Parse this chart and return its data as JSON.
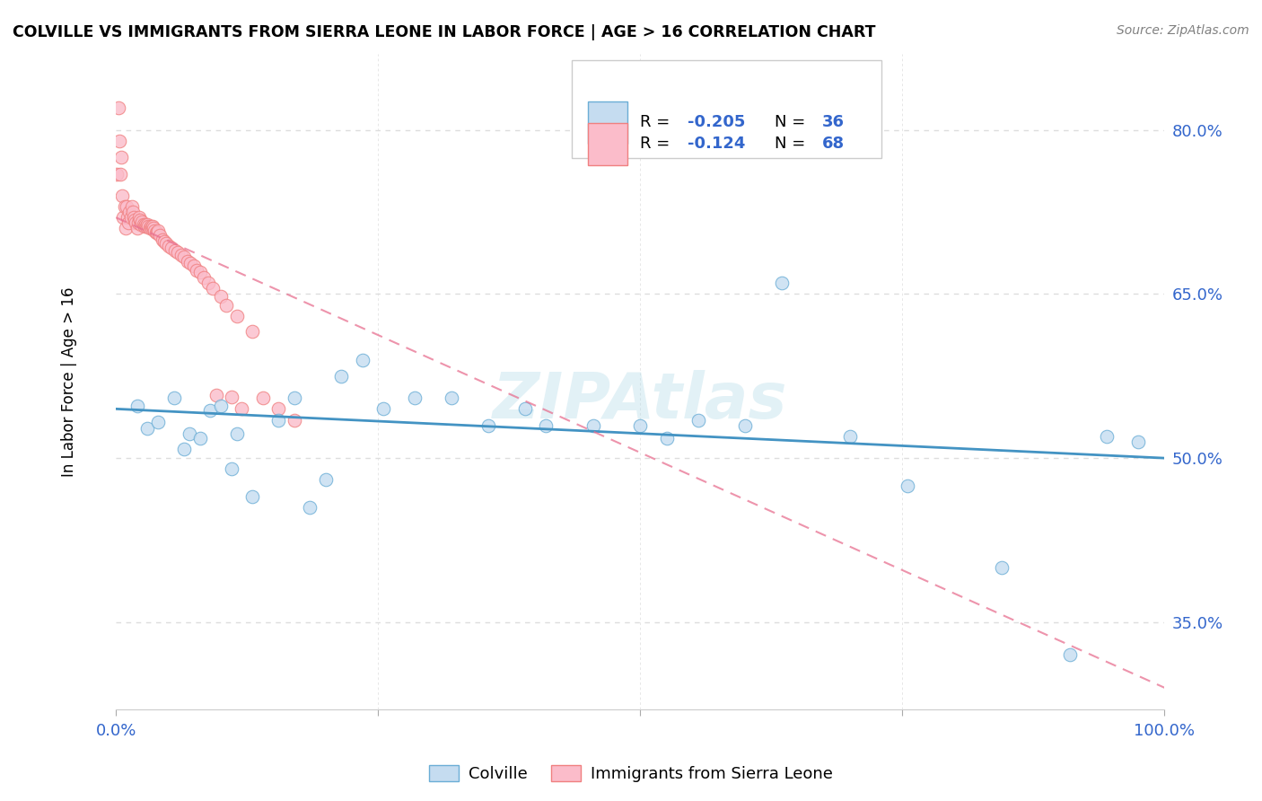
{
  "title": "COLVILLE VS IMMIGRANTS FROM SIERRA LEONE IN LABOR FORCE | AGE > 16 CORRELATION CHART",
  "source": "Source: ZipAtlas.com",
  "ylabel": "In Labor Force | Age > 16",
  "xlim": [
    0.0,
    1.0
  ],
  "ylim": [
    0.27,
    0.87
  ],
  "ytick_values": [
    0.35,
    0.5,
    0.65,
    0.8
  ],
  "ytick_labels": [
    "35.0%",
    "50.0%",
    "65.0%",
    "80.0%"
  ],
  "xtick_values": [
    0.0,
    0.25,
    0.5,
    0.75,
    1.0
  ],
  "xtick_labels": [
    "0.0%",
    "",
    "",
    "",
    "100.0%"
  ],
  "blue_r": -0.205,
  "blue_n": 36,
  "pink_r": -0.124,
  "pink_n": 68,
  "blue_fill": "#C5DCF0",
  "blue_edge": "#6BAED6",
  "blue_line": "#4393C3",
  "pink_fill": "#FBBCCA",
  "pink_edge": "#F08080",
  "pink_line": "#E87090",
  "watermark": "ZIPAtlas",
  "background": "#FFFFFF",
  "grid_color": "#DDDDDD",
  "blue_scatter_x": [
    0.02,
    0.03,
    0.04,
    0.055,
    0.065,
    0.07,
    0.08,
    0.09,
    0.1,
    0.11,
    0.115,
    0.13,
    0.155,
    0.17,
    0.185,
    0.2,
    0.215,
    0.235,
    0.255,
    0.285,
    0.32,
    0.355,
    0.39,
    0.41,
    0.455,
    0.5,
    0.525,
    0.555,
    0.6,
    0.635,
    0.7,
    0.755,
    0.845,
    0.91,
    0.945,
    0.975
  ],
  "blue_scatter_y": [
    0.548,
    0.527,
    0.533,
    0.555,
    0.508,
    0.522,
    0.518,
    0.544,
    0.548,
    0.49,
    0.522,
    0.465,
    0.535,
    0.555,
    0.455,
    0.48,
    0.575,
    0.59,
    0.545,
    0.555,
    0.555,
    0.53,
    0.545,
    0.53,
    0.53,
    0.53,
    0.518,
    0.535,
    0.53,
    0.66,
    0.52,
    0.475,
    0.4,
    0.32,
    0.52,
    0.515
  ],
  "pink_scatter_x": [
    0.001,
    0.002,
    0.003,
    0.004,
    0.005,
    0.006,
    0.007,
    0.008,
    0.009,
    0.01,
    0.011,
    0.012,
    0.013,
    0.014,
    0.015,
    0.016,
    0.017,
    0.018,
    0.019,
    0.02,
    0.021,
    0.022,
    0.023,
    0.024,
    0.025,
    0.026,
    0.027,
    0.028,
    0.029,
    0.03,
    0.031,
    0.032,
    0.033,
    0.034,
    0.035,
    0.036,
    0.037,
    0.038,
    0.039,
    0.04,
    0.042,
    0.044,
    0.046,
    0.048,
    0.05,
    0.053,
    0.056,
    0.059,
    0.062,
    0.065,
    0.068,
    0.071,
    0.074,
    0.077,
    0.08,
    0.084,
    0.088,
    0.092,
    0.096,
    0.1,
    0.105,
    0.11,
    0.115,
    0.12,
    0.13,
    0.14,
    0.155,
    0.17
  ],
  "pink_scatter_y": [
    0.76,
    0.82,
    0.79,
    0.76,
    0.775,
    0.74,
    0.72,
    0.73,
    0.71,
    0.73,
    0.72,
    0.715,
    0.725,
    0.72,
    0.73,
    0.725,
    0.72,
    0.718,
    0.715,
    0.71,
    0.715,
    0.72,
    0.718,
    0.714,
    0.716,
    0.714,
    0.712,
    0.714,
    0.712,
    0.714,
    0.712,
    0.71,
    0.712,
    0.71,
    0.712,
    0.71,
    0.708,
    0.706,
    0.706,
    0.708,
    0.704,
    0.7,
    0.698,
    0.696,
    0.694,
    0.692,
    0.69,
    0.688,
    0.686,
    0.684,
    0.68,
    0.678,
    0.676,
    0.672,
    0.67,
    0.665,
    0.66,
    0.655,
    0.558,
    0.648,
    0.64,
    0.556,
    0.63,
    0.545,
    0.616,
    0.555,
    0.545,
    0.535
  ]
}
